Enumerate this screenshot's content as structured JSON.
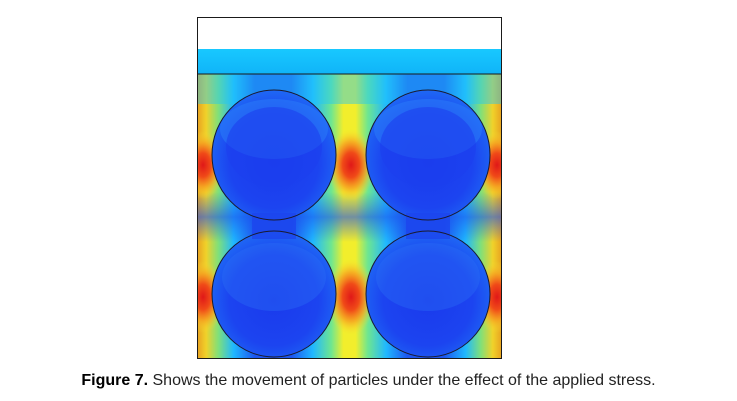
{
  "caption": {
    "label": "Figure 7.",
    "text": " Shows the movement of particles under the effect of the applied stress."
  },
  "colors": {
    "low": "#1c3ff2",
    "mid_low": "#1fa9ff",
    "mid": "#2ee6e0",
    "mid_high": "#f5f02a",
    "high": "#f08a1a",
    "peak": "#e8201a",
    "outline": "#1a1a2e",
    "void": "#ffffff"
  }
}
